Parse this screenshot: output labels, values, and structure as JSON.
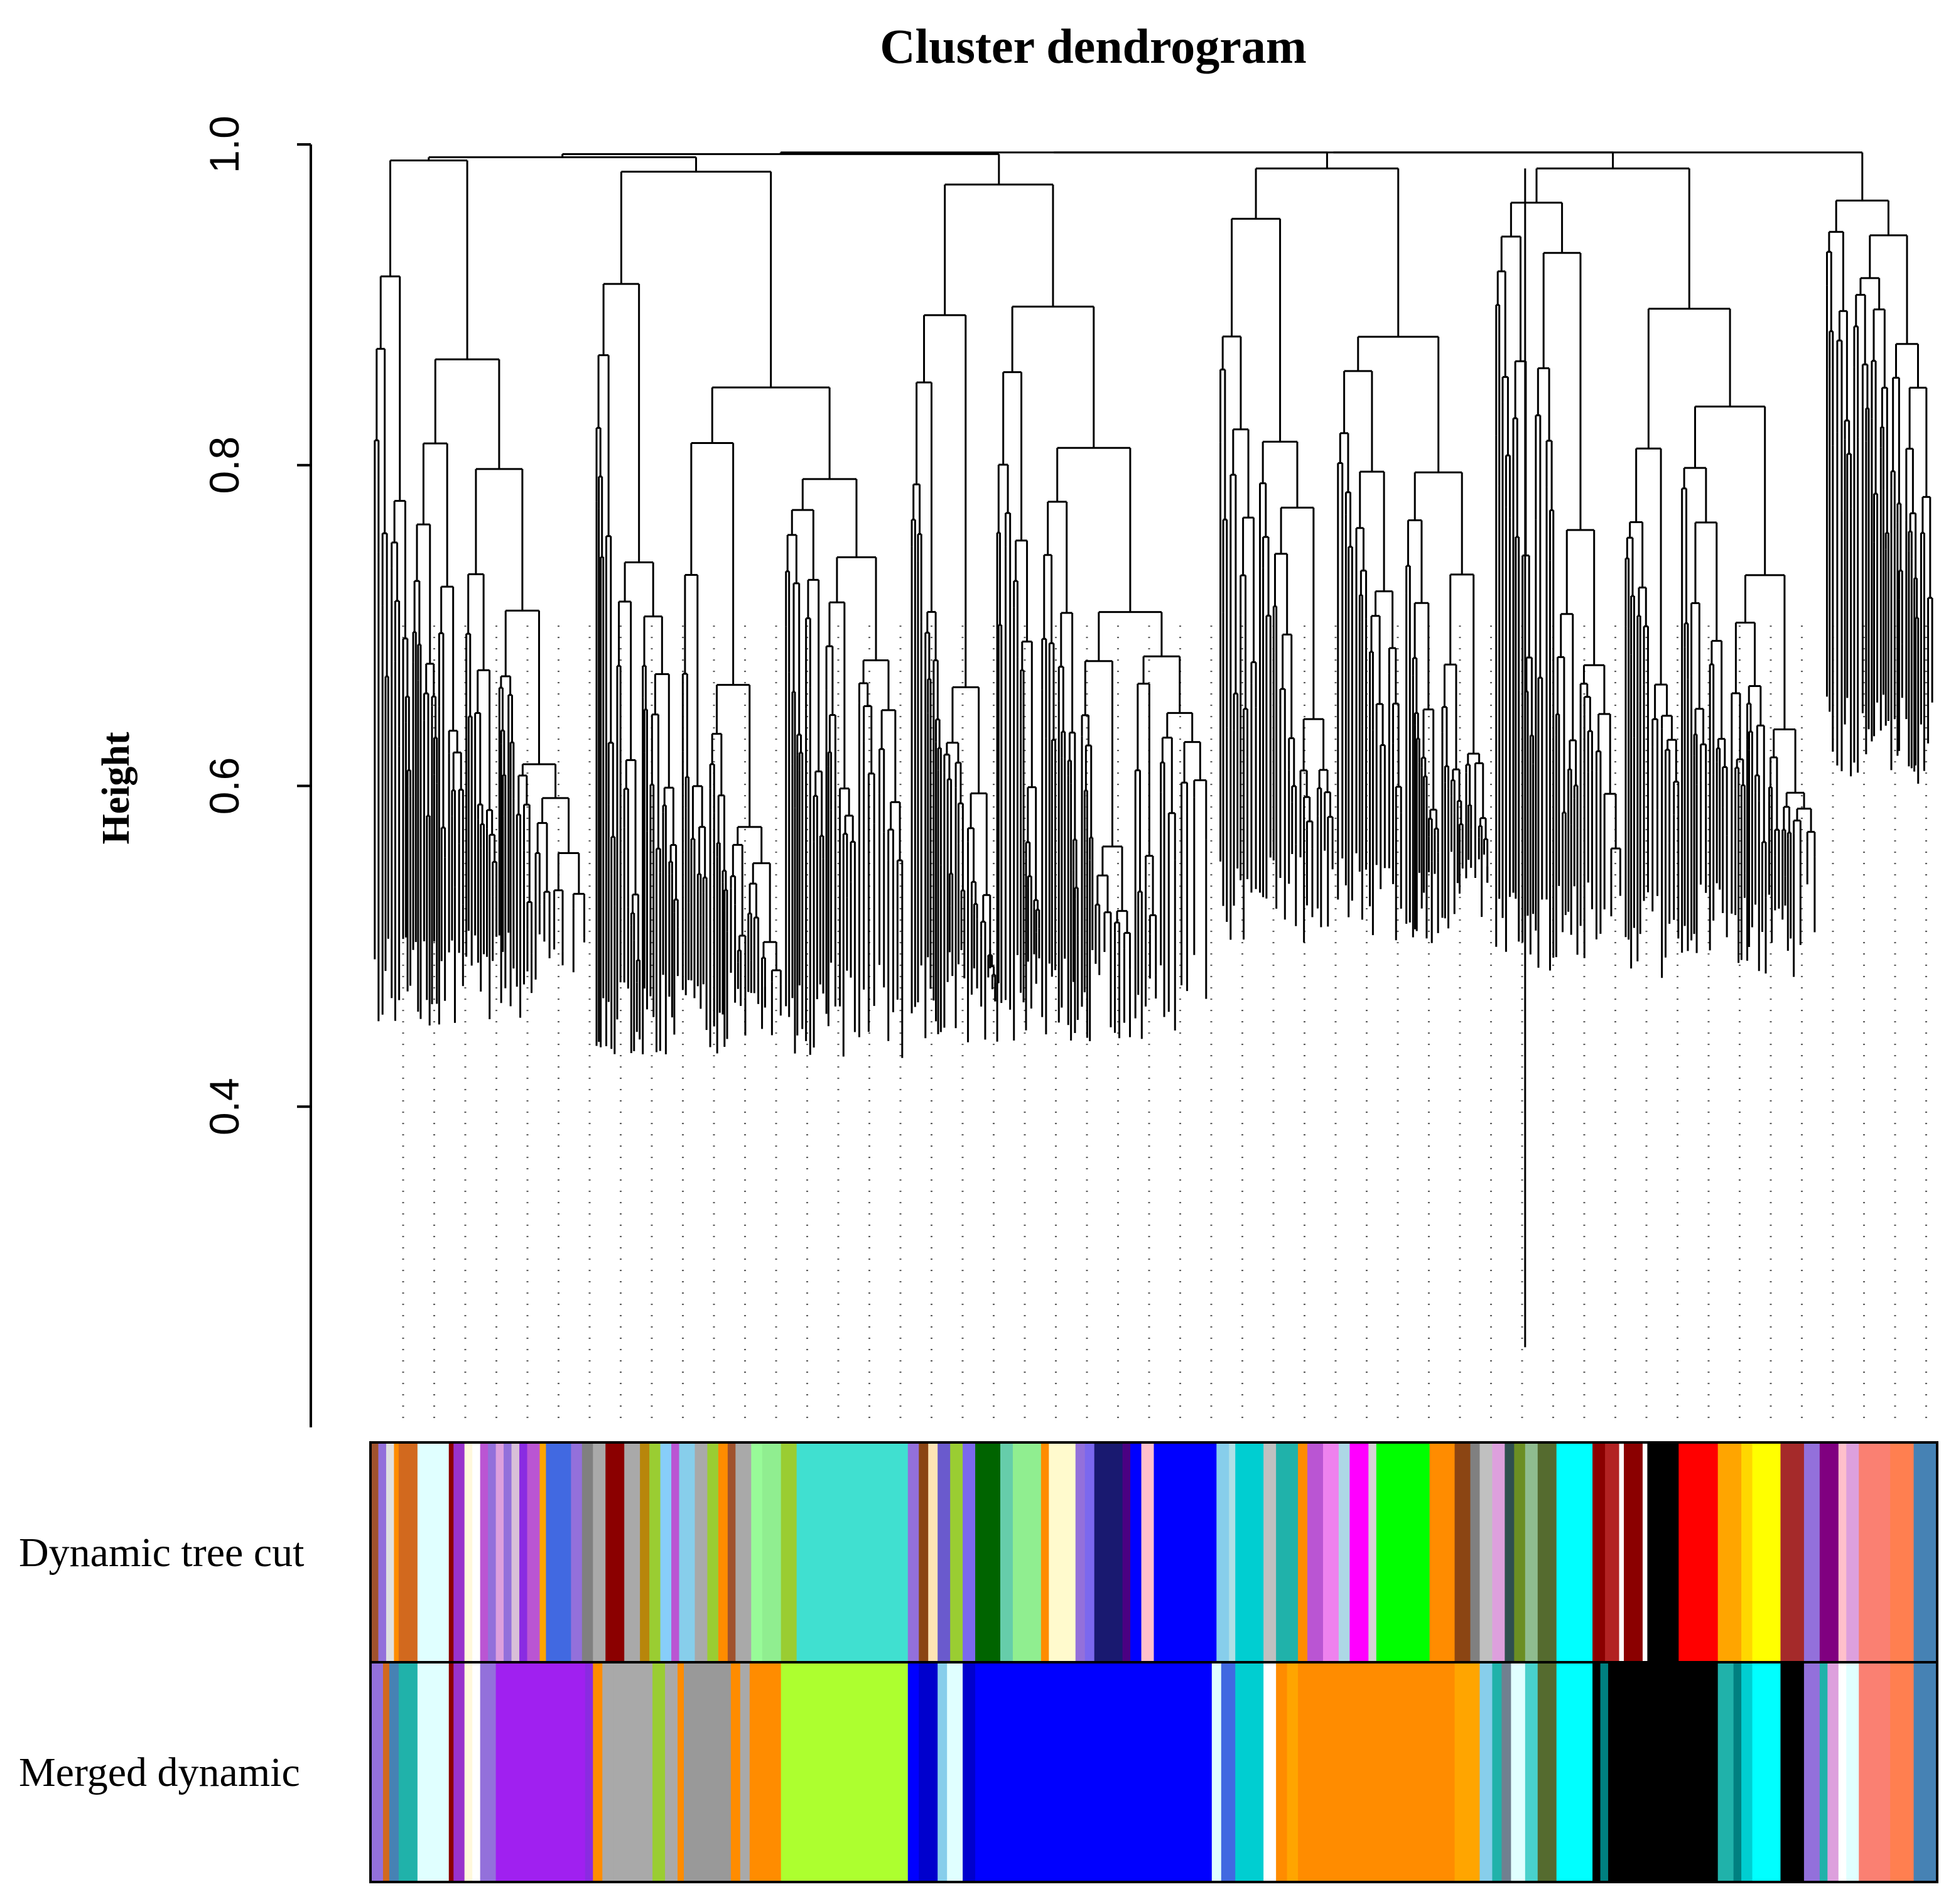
{
  "chart_data": {
    "type": "dendrogram",
    "title": "Cluster dendrogram",
    "ylabel": "Height",
    "xlabel": "",
    "ylim": [
      0.2,
      1.0
    ],
    "yticks": [
      {
        "value": 0.4,
        "label": "0.4"
      },
      {
        "value": 0.6,
        "label": "0.6"
      },
      {
        "value": 0.8,
        "label": "0.8"
      },
      {
        "value": 1.0,
        "label": "1.0"
      }
    ],
    "top_merge_height": 0.995,
    "clusters": [
      {
        "x_start": 0.0,
        "x_end": 0.142,
        "merge": 0.99,
        "leaf_min": 0.45
      },
      {
        "x_start": 0.142,
        "x_end": 0.343,
        "merge": 0.983,
        "leaf_min": 0.43
      },
      {
        "x_start": 0.343,
        "x_end": 0.54,
        "merge": 0.975,
        "leaf_min": 0.44
      },
      {
        "x_start": 0.54,
        "x_end": 0.716,
        "merge": 0.985,
        "leaf_min": 0.5
      },
      {
        "x_start": 0.716,
        "x_end": 0.927,
        "merge": 0.985,
        "leaf_min": 0.48
      },
      {
        "x_start": 0.927,
        "x_end": 1.0,
        "merge": 0.965,
        "leaf_min": 0.6
      }
    ],
    "outlier_leaf": {
      "x": 0.737,
      "height": 0.25
    },
    "color_rows": [
      {
        "label": "Dynamic tree cut",
        "segments": [
          {
            "start": 0.0,
            "end": 0.005,
            "color": "#a0522d"
          },
          {
            "start": 0.005,
            "end": 0.01,
            "color": "#9370db"
          },
          {
            "start": 0.01,
            "end": 0.015,
            "color": "#e0e0e0"
          },
          {
            "start": 0.015,
            "end": 0.018,
            "color": "#ff8c00"
          },
          {
            "start": 0.018,
            "end": 0.03,
            "color": "#d2691e"
          },
          {
            "start": 0.03,
            "end": 0.05,
            "color": "#e0ffff"
          },
          {
            "start": 0.05,
            "end": 0.053,
            "color": "#8b0000"
          },
          {
            "start": 0.053,
            "end": 0.06,
            "color": "#9932cc"
          },
          {
            "start": 0.06,
            "end": 0.065,
            "color": "#fff8dc"
          },
          {
            "start": 0.065,
            "end": 0.07,
            "color": "#ffffff"
          },
          {
            "start": 0.07,
            "end": 0.075,
            "color": "#ba55d3"
          },
          {
            "start": 0.075,
            "end": 0.08,
            "color": "#9370db"
          },
          {
            "start": 0.08,
            "end": 0.085,
            "color": "#dda0dd"
          },
          {
            "start": 0.085,
            "end": 0.09,
            "color": "#9370db"
          },
          {
            "start": 0.09,
            "end": 0.095,
            "color": "#d8bfd8"
          },
          {
            "start": 0.095,
            "end": 0.1,
            "color": "#8a2be2"
          },
          {
            "start": 0.1,
            "end": 0.108,
            "color": "#ba55d3"
          },
          {
            "start": 0.108,
            "end": 0.112,
            "color": "#ffa500"
          },
          {
            "start": 0.112,
            "end": 0.128,
            "color": "#4169e1"
          },
          {
            "start": 0.128,
            "end": 0.135,
            "color": "#9370db"
          },
          {
            "start": 0.135,
            "end": 0.142,
            "color": "#808080"
          },
          {
            "start": 0.142,
            "end": 0.15,
            "color": "#a9a9a9"
          },
          {
            "start": 0.15,
            "end": 0.162,
            "color": "#8b0000"
          },
          {
            "start": 0.162,
            "end": 0.172,
            "color": "#a9a9a9"
          },
          {
            "start": 0.172,
            "end": 0.178,
            "color": "#b8860b"
          },
          {
            "start": 0.178,
            "end": 0.185,
            "color": "#9acd32"
          },
          {
            "start": 0.185,
            "end": 0.192,
            "color": "#87cefa"
          },
          {
            "start": 0.192,
            "end": 0.197,
            "color": "#ba55d3"
          },
          {
            "start": 0.197,
            "end": 0.207,
            "color": "#87ceeb"
          },
          {
            "start": 0.207,
            "end": 0.215,
            "color": "#a9a9a9"
          },
          {
            "start": 0.215,
            "end": 0.222,
            "color": "#9acd32"
          },
          {
            "start": 0.222,
            "end": 0.228,
            "color": "#ff8c00"
          },
          {
            "start": 0.228,
            "end": 0.233,
            "color": "#a0522d"
          },
          {
            "start": 0.233,
            "end": 0.243,
            "color": "#a9a9a9"
          },
          {
            "start": 0.243,
            "end": 0.25,
            "color": "#98fb98"
          },
          {
            "start": 0.25,
            "end": 0.262,
            "color": "#90ee90"
          },
          {
            "start": 0.262,
            "end": 0.272,
            "color": "#9acd32"
          },
          {
            "start": 0.272,
            "end": 0.343,
            "color": "#40e0d0"
          },
          {
            "start": 0.343,
            "end": 0.35,
            "color": "#9370db"
          },
          {
            "start": 0.35,
            "end": 0.356,
            "color": "#8b4513"
          },
          {
            "start": 0.356,
            "end": 0.362,
            "color": "#ffe4b5"
          },
          {
            "start": 0.362,
            "end": 0.37,
            "color": "#6a5acd"
          },
          {
            "start": 0.37,
            "end": 0.378,
            "color": "#9acd32"
          },
          {
            "start": 0.378,
            "end": 0.386,
            "color": "#7b68ee"
          },
          {
            "start": 0.386,
            "end": 0.402,
            "color": "#006400"
          },
          {
            "start": 0.402,
            "end": 0.41,
            "color": "#66cdaa"
          },
          {
            "start": 0.41,
            "end": 0.428,
            "color": "#90ee90"
          },
          {
            "start": 0.428,
            "end": 0.433,
            "color": "#ff8c00"
          },
          {
            "start": 0.433,
            "end": 0.45,
            "color": "#fffacd"
          },
          {
            "start": 0.45,
            "end": 0.456,
            "color": "#9370db"
          },
          {
            "start": 0.456,
            "end": 0.462,
            "color": "#7b68ee"
          },
          {
            "start": 0.462,
            "end": 0.48,
            "color": "#191970"
          },
          {
            "start": 0.48,
            "end": 0.485,
            "color": "#4b0082"
          },
          {
            "start": 0.485,
            "end": 0.492,
            "color": "#0000ff"
          },
          {
            "start": 0.492,
            "end": 0.5,
            "color": "#ffc0cb"
          },
          {
            "start": 0.5,
            "end": 0.54,
            "color": "#0000ff"
          },
          {
            "start": 0.54,
            "end": 0.548,
            "color": "#87ceeb"
          },
          {
            "start": 0.548,
            "end": 0.552,
            "color": "#b0e0e6"
          },
          {
            "start": 0.552,
            "end": 0.57,
            "color": "#00ced1"
          },
          {
            "start": 0.57,
            "end": 0.578,
            "color": "#c0c0c0"
          },
          {
            "start": 0.578,
            "end": 0.592,
            "color": "#20b2aa"
          },
          {
            "start": 0.592,
            "end": 0.598,
            "color": "#ff8c00"
          },
          {
            "start": 0.598,
            "end": 0.608,
            "color": "#ba55d3"
          },
          {
            "start": 0.608,
            "end": 0.618,
            "color": "#ee82ee"
          },
          {
            "start": 0.618,
            "end": 0.625,
            "color": "#add8e6"
          },
          {
            "start": 0.625,
            "end": 0.637,
            "color": "#ff00ff"
          },
          {
            "start": 0.637,
            "end": 0.642,
            "color": "#d3d3d3"
          },
          {
            "start": 0.642,
            "end": 0.676,
            "color": "#00ff00"
          },
          {
            "start": 0.676,
            "end": 0.692,
            "color": "#ff8c00"
          },
          {
            "start": 0.692,
            "end": 0.702,
            "color": "#8b4513"
          },
          {
            "start": 0.702,
            "end": 0.708,
            "color": "#808080"
          },
          {
            "start": 0.708,
            "end": 0.716,
            "color": "#c0c0c0"
          },
          {
            "start": 0.716,
            "end": 0.724,
            "color": "#dda0dd"
          },
          {
            "start": 0.724,
            "end": 0.73,
            "color": "#2f4f4f"
          },
          {
            "start": 0.73,
            "end": 0.737,
            "color": "#6b8e23"
          },
          {
            "start": 0.737,
            "end": 0.745,
            "color": "#8fbc8f"
          },
          {
            "start": 0.745,
            "end": 0.757,
            "color": "#556b2f"
          },
          {
            "start": 0.757,
            "end": 0.78,
            "color": "#00ffff"
          },
          {
            "start": 0.78,
            "end": 0.788,
            "color": "#8b0000"
          },
          {
            "start": 0.788,
            "end": 0.797,
            "color": "#b22222"
          },
          {
            "start": 0.797,
            "end": 0.8,
            "color": "#ffffff"
          },
          {
            "start": 0.8,
            "end": 0.812,
            "color": "#8b0000"
          },
          {
            "start": 0.812,
            "end": 0.815,
            "color": "#ffffff"
          },
          {
            "start": 0.815,
            "end": 0.835,
            "color": "#000000"
          },
          {
            "start": 0.835,
            "end": 0.86,
            "color": "#ff0000"
          },
          {
            "start": 0.86,
            "end": 0.875,
            "color": "#ffa500"
          },
          {
            "start": 0.875,
            "end": 0.882,
            "color": "#ffd700"
          },
          {
            "start": 0.882,
            "end": 0.9,
            "color": "#ffff00"
          },
          {
            "start": 0.9,
            "end": 0.915,
            "color": "#a52a2a"
          },
          {
            "start": 0.915,
            "end": 0.925,
            "color": "#9370db"
          },
          {
            "start": 0.925,
            "end": 0.937,
            "color": "#800080"
          },
          {
            "start": 0.937,
            "end": 0.942,
            "color": "#ffc0cb"
          },
          {
            "start": 0.942,
            "end": 0.95,
            "color": "#dda0dd"
          },
          {
            "start": 0.95,
            "end": 0.97,
            "color": "#fa8072"
          },
          {
            "start": 0.97,
            "end": 0.985,
            "color": "#ff7f50"
          },
          {
            "start": 0.985,
            "end": 1.0,
            "color": "#4682b4"
          }
        ]
      },
      {
        "label": "Merged dynamic",
        "segments": [
          {
            "start": 0.0,
            "end": 0.008,
            "color": "#9370db"
          },
          {
            "start": 0.008,
            "end": 0.012,
            "color": "#d2691e"
          },
          {
            "start": 0.012,
            "end": 0.018,
            "color": "#4682b4"
          },
          {
            "start": 0.018,
            "end": 0.03,
            "color": "#20b2aa"
          },
          {
            "start": 0.03,
            "end": 0.05,
            "color": "#e0ffff"
          },
          {
            "start": 0.05,
            "end": 0.053,
            "color": "#8b0000"
          },
          {
            "start": 0.053,
            "end": 0.06,
            "color": "#9932cc"
          },
          {
            "start": 0.06,
            "end": 0.065,
            "color": "#fff8dc"
          },
          {
            "start": 0.065,
            "end": 0.07,
            "color": "#ffffff"
          },
          {
            "start": 0.07,
            "end": 0.08,
            "color": "#9370db"
          },
          {
            "start": 0.08,
            "end": 0.137,
            "color": "#a020f0"
          },
          {
            "start": 0.137,
            "end": 0.142,
            "color": "#8a2be2"
          },
          {
            "start": 0.142,
            "end": 0.148,
            "color": "#ff8c00"
          },
          {
            "start": 0.148,
            "end": 0.155,
            "color": "#a9a9a9"
          },
          {
            "start": 0.155,
            "end": 0.18,
            "color": "#a9a9a9"
          },
          {
            "start": 0.18,
            "end": 0.188,
            "color": "#9acd32"
          },
          {
            "start": 0.188,
            "end": 0.196,
            "color": "#a9a9a9"
          },
          {
            "start": 0.196,
            "end": 0.2,
            "color": "#ff8c00"
          },
          {
            "start": 0.2,
            "end": 0.23,
            "color": "#999999"
          },
          {
            "start": 0.23,
            "end": 0.236,
            "color": "#ff8c00"
          },
          {
            "start": 0.236,
            "end": 0.242,
            "color": "#a9a9a9"
          },
          {
            "start": 0.242,
            "end": 0.262,
            "color": "#ff8c00"
          },
          {
            "start": 0.262,
            "end": 0.343,
            "color": "#adff2f"
          },
          {
            "start": 0.343,
            "end": 0.35,
            "color": "#0000ff"
          },
          {
            "start": 0.35,
            "end": 0.362,
            "color": "#0000cd"
          },
          {
            "start": 0.362,
            "end": 0.368,
            "color": "#87ceeb"
          },
          {
            "start": 0.368,
            "end": 0.378,
            "color": "#e0ffff"
          },
          {
            "start": 0.378,
            "end": 0.386,
            "color": "#0000cd"
          },
          {
            "start": 0.386,
            "end": 0.537,
            "color": "#0000ff"
          },
          {
            "start": 0.537,
            "end": 0.543,
            "color": "#e0ffff"
          },
          {
            "start": 0.543,
            "end": 0.552,
            "color": "#4169e1"
          },
          {
            "start": 0.552,
            "end": 0.57,
            "color": "#00ced1"
          },
          {
            "start": 0.57,
            "end": 0.578,
            "color": "#ffffff"
          },
          {
            "start": 0.578,
            "end": 0.585,
            "color": "#ff8c00"
          },
          {
            "start": 0.585,
            "end": 0.592,
            "color": "#ffa500"
          },
          {
            "start": 0.592,
            "end": 0.676,
            "color": "#ff8c00"
          },
          {
            "start": 0.676,
            "end": 0.692,
            "color": "#ff8c00"
          },
          {
            "start": 0.692,
            "end": 0.708,
            "color": "#ffa500"
          },
          {
            "start": 0.708,
            "end": 0.716,
            "color": "#87ceeb"
          },
          {
            "start": 0.716,
            "end": 0.722,
            "color": "#20b2aa"
          },
          {
            "start": 0.722,
            "end": 0.728,
            "color": "#708090"
          },
          {
            "start": 0.728,
            "end": 0.737,
            "color": "#e0ffff"
          },
          {
            "start": 0.737,
            "end": 0.745,
            "color": "#48d1cc"
          },
          {
            "start": 0.745,
            "end": 0.757,
            "color": "#556b2f"
          },
          {
            "start": 0.757,
            "end": 0.78,
            "color": "#00ffff"
          },
          {
            "start": 0.78,
            "end": 0.785,
            "color": "#000000"
          },
          {
            "start": 0.785,
            "end": 0.79,
            "color": "#008080"
          },
          {
            "start": 0.79,
            "end": 0.86,
            "color": "#000000"
          },
          {
            "start": 0.86,
            "end": 0.87,
            "color": "#20b2aa"
          },
          {
            "start": 0.87,
            "end": 0.875,
            "color": "#008080"
          },
          {
            "start": 0.875,
            "end": 0.882,
            "color": "#00ced1"
          },
          {
            "start": 0.882,
            "end": 0.9,
            "color": "#00ffff"
          },
          {
            "start": 0.9,
            "end": 0.915,
            "color": "#000000"
          },
          {
            "start": 0.915,
            "end": 0.925,
            "color": "#9370db"
          },
          {
            "start": 0.925,
            "end": 0.93,
            "color": "#20b2aa"
          },
          {
            "start": 0.93,
            "end": 0.937,
            "color": "#dda0dd"
          },
          {
            "start": 0.937,
            "end": 0.942,
            "color": "#ffffff"
          },
          {
            "start": 0.942,
            "end": 0.95,
            "color": "#e0ffff"
          },
          {
            "start": 0.95,
            "end": 0.97,
            "color": "#fa8072"
          },
          {
            "start": 0.97,
            "end": 0.985,
            "color": "#ff7f50"
          },
          {
            "start": 0.985,
            "end": 1.0,
            "color": "#4682b4"
          }
        ]
      }
    ]
  }
}
